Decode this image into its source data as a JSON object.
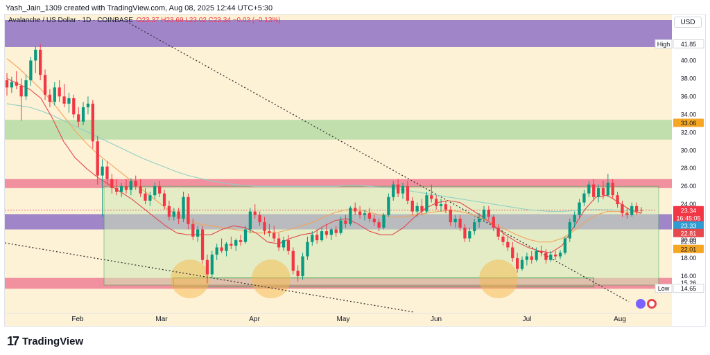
{
  "header": {
    "credit": "Yash_Jain_1309 created with TradingView.com, Aug 08, 2025 12:44 UTC+5:30"
  },
  "symbol": {
    "name": "Avalanche / US Dollar · 1D · COINBASE",
    "ohlc": "O23.37  H23.69  L23.02  C23.34  −0.03 (−0.13%)"
  },
  "currency": "USD",
  "footer": {
    "logo_mark": "17",
    "logo_text": "TradingView"
  },
  "colors": {
    "background": "#fdf1d6",
    "up": "#089981",
    "down": "#f23645",
    "purple_zone": "#9b7ec8",
    "green_zone": "#b5dca6",
    "pink_zone": "#f08a9c",
    "range_box": "#cfe8b8",
    "ema_fast": "#e5484d",
    "ema_mid": "#f5a35a",
    "ema_slow": "#8fd1c6"
  },
  "chart_data": {
    "type": "candlestick",
    "title": "Avalanche / US Dollar · 1D · COINBASE",
    "ylim": [
      12,
      44.5
    ],
    "y_ticks": [
      16,
      18,
      20,
      22,
      24,
      26,
      28,
      30,
      32,
      34,
      36,
      38,
      40
    ],
    "x_ticks": [
      "Feb",
      "Mar",
      "Apr",
      "May",
      "Jun",
      "Jul",
      "Aug"
    ],
    "price_labels": [
      {
        "text": "High",
        "value": "41.85",
        "style": "high"
      },
      {
        "text": "",
        "value": "33.06",
        "style": "orange"
      },
      {
        "text": "",
        "value": "23.34",
        "style": "red-top"
      },
      {
        "text": "",
        "value": "16:45:05",
        "style": "red-bottom"
      },
      {
        "text": "",
        "value": "23.33",
        "style": "teal"
      },
      {
        "text": "",
        "value": "22.81",
        "style": "red"
      },
      {
        "text": "",
        "value": "22.63",
        "style": "plain"
      },
      {
        "text": "",
        "value": "22.01",
        "style": "orange"
      },
      {
        "text": "",
        "value": "15.26",
        "style": "plain"
      },
      {
        "text": "Low",
        "value": "14.65",
        "style": "low"
      }
    ],
    "zones": [
      {
        "name": "purple-resistance",
        "from": 41.5,
        "to": 44.5,
        "color": "purple"
      },
      {
        "name": "green-supply",
        "from": 31.2,
        "to": 33.4,
        "color": "green"
      },
      {
        "name": "pink-resistance",
        "from": 25.8,
        "to": 26.8,
        "color": "pink"
      },
      {
        "name": "purple-support",
        "from": 21.2,
        "to": 22.9,
        "color": "purple"
      },
      {
        "name": "pink-support",
        "from": 14.6,
        "to": 15.8,
        "color": "pink"
      }
    ],
    "candles": [
      {
        "o": 37.8,
        "h": 38.6,
        "l": 36.1,
        "c": 37.0
      },
      {
        "o": 37.0,
        "h": 38.2,
        "l": 36.4,
        "c": 37.6
      },
      {
        "o": 37.6,
        "h": 38.8,
        "l": 36.8,
        "c": 37.2
      },
      {
        "o": 37.2,
        "h": 38.0,
        "l": 33.3,
        "c": 36.0
      },
      {
        "o": 36.0,
        "h": 38.4,
        "l": 35.6,
        "c": 37.8
      },
      {
        "o": 37.8,
        "h": 40.4,
        "l": 37.2,
        "c": 40.0
      },
      {
        "o": 40.0,
        "h": 41.6,
        "l": 38.6,
        "c": 41.2
      },
      {
        "o": 41.2,
        "h": 41.85,
        "l": 37.8,
        "c": 38.4
      },
      {
        "o": 38.4,
        "h": 39.0,
        "l": 35.6,
        "c": 36.2
      },
      {
        "o": 36.2,
        "h": 36.8,
        "l": 34.8,
        "c": 35.4
      },
      {
        "o": 35.4,
        "h": 37.6,
        "l": 35.0,
        "c": 37.0
      },
      {
        "o": 37.0,
        "h": 37.8,
        "l": 35.4,
        "c": 36.0
      },
      {
        "o": 36.0,
        "h": 37.4,
        "l": 34.8,
        "c": 35.2
      },
      {
        "o": 35.2,
        "h": 36.4,
        "l": 34.2,
        "c": 35.8
      },
      {
        "o": 35.8,
        "h": 36.2,
        "l": 33.6,
        "c": 34.0
      },
      {
        "o": 34.0,
        "h": 34.8,
        "l": 32.6,
        "c": 33.2
      },
      {
        "o": 33.2,
        "h": 35.4,
        "l": 32.8,
        "c": 34.8
      },
      {
        "o": 34.8,
        "h": 36.0,
        "l": 34.0,
        "c": 35.2
      },
      {
        "o": 35.2,
        "h": 35.6,
        "l": 30.2,
        "c": 31.0
      },
      {
        "o": 31.0,
        "h": 31.6,
        "l": 26.2,
        "c": 27.2
      },
      {
        "o": 27.2,
        "h": 29.0,
        "l": 22.6,
        "c": 28.2
      },
      {
        "o": 28.2,
        "h": 28.8,
        "l": 26.2,
        "c": 26.8
      },
      {
        "o": 26.8,
        "h": 27.4,
        "l": 25.2,
        "c": 25.8
      },
      {
        "o": 25.8,
        "h": 26.8,
        "l": 25.0,
        "c": 25.4
      },
      {
        "o": 25.4,
        "h": 26.4,
        "l": 24.8,
        "c": 26.0
      },
      {
        "o": 26.0,
        "h": 26.8,
        "l": 25.2,
        "c": 25.6
      },
      {
        "o": 25.6,
        "h": 26.9,
        "l": 25.0,
        "c": 26.6
      },
      {
        "o": 26.6,
        "h": 27.2,
        "l": 25.6,
        "c": 26.0
      },
      {
        "o": 26.0,
        "h": 26.8,
        "l": 24.8,
        "c": 25.2
      },
      {
        "o": 25.2,
        "h": 25.8,
        "l": 24.0,
        "c": 24.4
      },
      {
        "o": 24.4,
        "h": 25.4,
        "l": 23.8,
        "c": 25.0
      },
      {
        "o": 25.0,
        "h": 26.4,
        "l": 24.6,
        "c": 26.0
      },
      {
        "o": 26.0,
        "h": 26.6,
        "l": 24.8,
        "c": 25.2
      },
      {
        "o": 25.2,
        "h": 25.6,
        "l": 23.4,
        "c": 23.8
      },
      {
        "o": 23.8,
        "h": 24.4,
        "l": 22.2,
        "c": 22.6
      },
      {
        "o": 22.6,
        "h": 23.6,
        "l": 22.2,
        "c": 23.2
      },
      {
        "o": 23.2,
        "h": 23.6,
        "l": 21.8,
        "c": 22.4
      },
      {
        "o": 22.4,
        "h": 25.4,
        "l": 22.0,
        "c": 24.8
      },
      {
        "o": 24.8,
        "h": 25.2,
        "l": 21.2,
        "c": 21.8
      },
      {
        "o": 21.8,
        "h": 22.4,
        "l": 20.0,
        "c": 20.4
      },
      {
        "o": 20.4,
        "h": 21.6,
        "l": 19.8,
        "c": 21.2
      },
      {
        "o": 21.2,
        "h": 21.6,
        "l": 17.4,
        "c": 17.8
      },
      {
        "o": 17.8,
        "h": 18.4,
        "l": 15.2,
        "c": 16.2
      },
      {
        "o": 16.2,
        "h": 18.8,
        "l": 15.8,
        "c": 18.4
      },
      {
        "o": 18.4,
        "h": 19.6,
        "l": 17.8,
        "c": 19.2
      },
      {
        "o": 19.2,
        "h": 20.2,
        "l": 18.6,
        "c": 18.8
      },
      {
        "o": 18.8,
        "h": 19.8,
        "l": 18.2,
        "c": 19.6
      },
      {
        "o": 19.6,
        "h": 20.4,
        "l": 19.0,
        "c": 19.4
      },
      {
        "o": 19.4,
        "h": 20.2,
        "l": 18.8,
        "c": 20.0
      },
      {
        "o": 20.0,
        "h": 20.6,
        "l": 19.4,
        "c": 19.8
      },
      {
        "o": 19.8,
        "h": 21.6,
        "l": 19.6,
        "c": 21.2
      },
      {
        "o": 21.2,
        "h": 23.6,
        "l": 20.8,
        "c": 23.2
      },
      {
        "o": 23.2,
        "h": 24.0,
        "l": 22.4,
        "c": 22.8
      },
      {
        "o": 22.8,
        "h": 23.2,
        "l": 21.6,
        "c": 22.0
      },
      {
        "o": 22.0,
        "h": 22.6,
        "l": 20.6,
        "c": 21.0
      },
      {
        "o": 21.0,
        "h": 21.8,
        "l": 20.4,
        "c": 20.8
      },
      {
        "o": 20.8,
        "h": 21.6,
        "l": 19.8,
        "c": 20.2
      },
      {
        "o": 20.2,
        "h": 20.8,
        "l": 18.8,
        "c": 19.2
      },
      {
        "o": 19.2,
        "h": 20.4,
        "l": 18.8,
        "c": 20.0
      },
      {
        "o": 20.0,
        "h": 20.6,
        "l": 18.4,
        "c": 18.8
      },
      {
        "o": 18.8,
        "h": 19.2,
        "l": 16.2,
        "c": 16.6
      },
      {
        "o": 16.6,
        "h": 17.2,
        "l": 15.4,
        "c": 16.0
      },
      {
        "o": 16.0,
        "h": 18.6,
        "l": 15.6,
        "c": 18.2
      },
      {
        "o": 18.2,
        "h": 20.4,
        "l": 17.8,
        "c": 19.8
      },
      {
        "o": 19.8,
        "h": 21.0,
        "l": 19.4,
        "c": 20.6
      },
      {
        "o": 20.6,
        "h": 21.2,
        "l": 19.6,
        "c": 20.0
      },
      {
        "o": 20.0,
        "h": 21.4,
        "l": 19.8,
        "c": 21.0
      },
      {
        "o": 21.0,
        "h": 21.8,
        "l": 20.2,
        "c": 20.6
      },
      {
        "o": 20.6,
        "h": 21.4,
        "l": 20.0,
        "c": 21.2
      },
      {
        "o": 21.2,
        "h": 21.6,
        "l": 20.4,
        "c": 20.8
      },
      {
        "o": 20.8,
        "h": 22.6,
        "l": 20.6,
        "c": 22.2
      },
      {
        "o": 22.2,
        "h": 22.8,
        "l": 21.4,
        "c": 21.8
      },
      {
        "o": 21.8,
        "h": 23.8,
        "l": 21.6,
        "c": 23.6
      },
      {
        "o": 23.6,
        "h": 24.2,
        "l": 22.8,
        "c": 23.2
      },
      {
        "o": 23.2,
        "h": 23.8,
        "l": 22.4,
        "c": 22.8
      },
      {
        "o": 22.8,
        "h": 23.4,
        "l": 22.2,
        "c": 23.0
      },
      {
        "o": 23.0,
        "h": 23.6,
        "l": 22.0,
        "c": 22.4
      },
      {
        "o": 22.4,
        "h": 22.8,
        "l": 21.6,
        "c": 22.0
      },
      {
        "o": 22.0,
        "h": 22.4,
        "l": 21.0,
        "c": 21.4
      },
      {
        "o": 21.4,
        "h": 23.0,
        "l": 21.2,
        "c": 22.8
      },
      {
        "o": 22.8,
        "h": 25.2,
        "l": 22.6,
        "c": 24.8
      },
      {
        "o": 24.8,
        "h": 26.6,
        "l": 24.4,
        "c": 26.2
      },
      {
        "o": 26.2,
        "h": 26.8,
        "l": 24.8,
        "c": 25.2
      },
      {
        "o": 25.2,
        "h": 26.4,
        "l": 24.6,
        "c": 26.0
      },
      {
        "o": 26.0,
        "h": 26.6,
        "l": 24.0,
        "c": 24.4
      },
      {
        "o": 24.4,
        "h": 24.8,
        "l": 22.8,
        "c": 23.2
      },
      {
        "o": 23.2,
        "h": 24.2,
        "l": 22.6,
        "c": 23.8
      },
      {
        "o": 23.8,
        "h": 24.6,
        "l": 22.8,
        "c": 23.2
      },
      {
        "o": 23.2,
        "h": 25.4,
        "l": 23.0,
        "c": 25.0
      },
      {
        "o": 25.0,
        "h": 26.2,
        "l": 24.2,
        "c": 24.6
      },
      {
        "o": 24.6,
        "h": 25.0,
        "l": 23.4,
        "c": 23.8
      },
      {
        "o": 23.8,
        "h": 24.6,
        "l": 23.2,
        "c": 24.0
      },
      {
        "o": 24.0,
        "h": 24.4,
        "l": 23.0,
        "c": 23.4
      },
      {
        "o": 23.4,
        "h": 23.8,
        "l": 21.6,
        "c": 22.0
      },
      {
        "o": 22.0,
        "h": 22.8,
        "l": 21.4,
        "c": 22.4
      },
      {
        "o": 22.4,
        "h": 22.8,
        "l": 21.0,
        "c": 21.4
      },
      {
        "o": 21.4,
        "h": 21.8,
        "l": 19.8,
        "c": 20.2
      },
      {
        "o": 20.2,
        "h": 21.4,
        "l": 19.8,
        "c": 21.0
      },
      {
        "o": 21.0,
        "h": 22.4,
        "l": 20.6,
        "c": 22.0
      },
      {
        "o": 22.0,
        "h": 23.0,
        "l": 21.4,
        "c": 22.4
      },
      {
        "o": 22.4,
        "h": 23.8,
        "l": 22.0,
        "c": 23.4
      },
      {
        "o": 23.4,
        "h": 23.8,
        "l": 22.2,
        "c": 22.6
      },
      {
        "o": 22.6,
        "h": 22.8,
        "l": 21.0,
        "c": 21.4
      },
      {
        "o": 21.4,
        "h": 21.8,
        "l": 20.0,
        "c": 20.4
      },
      {
        "o": 20.4,
        "h": 21.0,
        "l": 19.4,
        "c": 19.8
      },
      {
        "o": 19.8,
        "h": 20.4,
        "l": 18.8,
        "c": 19.2
      },
      {
        "o": 19.2,
        "h": 19.8,
        "l": 17.6,
        "c": 18.0
      },
      {
        "o": 18.0,
        "h": 18.6,
        "l": 16.4,
        "c": 16.8
      },
      {
        "o": 16.8,
        "h": 18.2,
        "l": 16.6,
        "c": 17.8
      },
      {
        "o": 17.8,
        "h": 18.6,
        "l": 17.2,
        "c": 18.2
      },
      {
        "o": 18.2,
        "h": 18.8,
        "l": 17.4,
        "c": 17.8
      },
      {
        "o": 17.8,
        "h": 19.2,
        "l": 17.6,
        "c": 18.8
      },
      {
        "o": 18.8,
        "h": 19.4,
        "l": 18.2,
        "c": 18.6
      },
      {
        "o": 18.6,
        "h": 19.0,
        "l": 17.4,
        "c": 17.8
      },
      {
        "o": 17.8,
        "h": 18.8,
        "l": 17.6,
        "c": 18.4
      },
      {
        "o": 18.4,
        "h": 18.8,
        "l": 17.8,
        "c": 18.2
      },
      {
        "o": 18.2,
        "h": 18.9,
        "l": 17.9,
        "c": 18.6
      },
      {
        "o": 18.6,
        "h": 20.4,
        "l": 18.4,
        "c": 20.2
      },
      {
        "o": 20.2,
        "h": 22.4,
        "l": 19.8,
        "c": 22.0
      },
      {
        "o": 22.0,
        "h": 23.2,
        "l": 21.4,
        "c": 22.8
      },
      {
        "o": 22.8,
        "h": 24.6,
        "l": 22.4,
        "c": 24.2
      },
      {
        "o": 24.2,
        "h": 25.6,
        "l": 23.8,
        "c": 25.2
      },
      {
        "o": 25.2,
        "h": 26.6,
        "l": 24.8,
        "c": 26.2
      },
      {
        "o": 26.2,
        "h": 26.8,
        "l": 24.4,
        "c": 24.8
      },
      {
        "o": 24.8,
        "h": 26.2,
        "l": 24.2,
        "c": 25.8
      },
      {
        "o": 25.8,
        "h": 26.6,
        "l": 24.6,
        "c": 25.0
      },
      {
        "o": 25.0,
        "h": 27.4,
        "l": 24.8,
        "c": 26.4
      },
      {
        "o": 26.4,
        "h": 26.8,
        "l": 24.6,
        "c": 25.0
      },
      {
        "o": 25.0,
        "h": 25.4,
        "l": 23.6,
        "c": 24.0
      },
      {
        "o": 24.0,
        "h": 24.4,
        "l": 22.6,
        "c": 23.0
      },
      {
        "o": 23.0,
        "h": 23.6,
        "l": 22.4,
        "c": 22.8
      },
      {
        "o": 22.8,
        "h": 24.2,
        "l": 22.6,
        "c": 23.8
      },
      {
        "o": 23.8,
        "h": 24.2,
        "l": 22.8,
        "c": 23.2
      },
      {
        "o": 23.37,
        "h": 23.69,
        "l": 23.02,
        "c": 23.34
      }
    ],
    "ema_fast": [
      38.0,
      37.4,
      36.8,
      35.8,
      33.6,
      31.0,
      29.2,
      28.0,
      27.0,
      26.2,
      25.4,
      24.6,
      23.6,
      22.6,
      21.6,
      20.8,
      20.6,
      20.6,
      20.6,
      21.2,
      21.6,
      21.4,
      20.8,
      19.8,
      19.6,
      20.2,
      20.6,
      20.8,
      21.6,
      22.2,
      22.4,
      21.8,
      21.0,
      20.6,
      20.6,
      21.4,
      22.6,
      23.6,
      24.2,
      24.4,
      24.2,
      23.4,
      22.6,
      21.6,
      20.6,
      19.8,
      19.2,
      18.8,
      18.6,
      19.4,
      21.4,
      23.4,
      24.8,
      25.0,
      24.2,
      23.4,
      23.0
    ],
    "ema_mid": [
      40.2,
      39.2,
      38.0,
      36.8,
      35.4,
      33.8,
      32.2,
      30.8,
      29.6,
      28.6,
      27.6,
      26.6,
      25.6,
      24.6,
      23.6,
      22.8,
      22.2,
      21.8,
      21.6,
      21.4,
      21.2,
      21.0,
      20.8,
      20.8,
      20.9,
      21.2,
      21.6,
      22.0,
      22.6,
      23.1,
      23.4,
      23.4,
      23.1,
      22.8,
      22.6,
      22.6,
      22.8,
      23.0,
      23.2,
      23.3,
      23.2,
      22.9,
      22.4,
      21.8,
      21.2,
      20.6,
      20.1,
      19.8,
      19.8,
      20.2,
      21.0,
      22.0,
      22.8,
      23.2,
      23.2,
      23.1,
      23.0
    ],
    "ema_slow": [
      35.2,
      35.0,
      34.8,
      34.4,
      33.9,
      33.3,
      32.7,
      32.1,
      31.5,
      30.9,
      30.3,
      29.7,
      29.1,
      28.6,
      28.1,
      27.6,
      27.2,
      26.9,
      26.6,
      26.4,
      26.2,
      26.1,
      26.0,
      26.0,
      26.0,
      26.0,
      26.0,
      26.0,
      26.0,
      26.0,
      26.1,
      26.1,
      26.0,
      25.9,
      25.8,
      25.6,
      25.4,
      25.2,
      25.0,
      24.8,
      24.6,
      24.4,
      24.2,
      24.0,
      23.8,
      23.6,
      23.4,
      23.3,
      23.2,
      23.2,
      23.3,
      23.4,
      23.4,
      23.4,
      23.35,
      23.33,
      23.33
    ]
  }
}
